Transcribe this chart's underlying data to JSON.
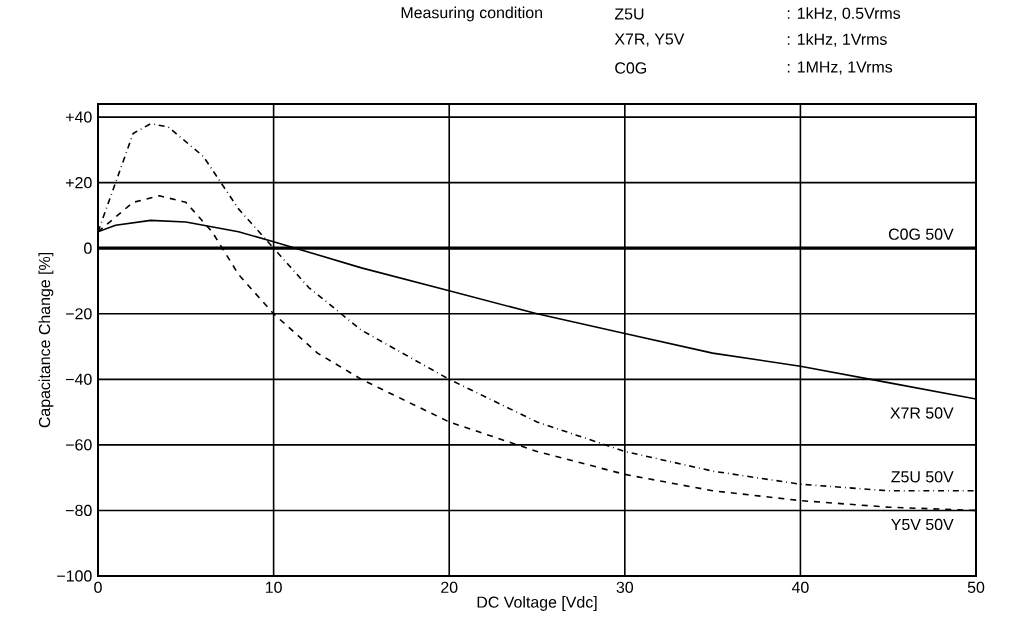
{
  "chart_data": {
    "type": "line",
    "xlabel": "DC Voltage [Vdc]",
    "ylabel": "Capacitance Change [%]",
    "xlim": [
      0,
      50
    ],
    "xticks": [
      0,
      10,
      20,
      30,
      40,
      50
    ],
    "ylim": [
      -100,
      44
    ],
    "yticks": [
      {
        "value": 40,
        "label": "+40"
      },
      {
        "value": 20,
        "label": "+20"
      },
      0,
      {
        "value": -20,
        "label": "−20"
      },
      {
        "value": -40,
        "label": "−40"
      },
      {
        "value": -60,
        "label": "−60"
      },
      {
        "value": -80,
        "label": "−80"
      },
      {
        "value": -100,
        "label": "−100"
      }
    ],
    "grid": true,
    "series": [
      {
        "name": "C0G 50V",
        "color": "#000000",
        "line_style": "solid",
        "x": [
          0,
          50
        ],
        "values": [
          0,
          0
        ]
      },
      {
        "name": "X7R 50V",
        "color": "#000000",
        "line_style": "solid",
        "x": [
          0,
          1,
          3,
          5,
          8,
          10,
          15,
          20,
          25,
          30,
          35,
          40,
          45,
          50
        ],
        "values": [
          5,
          7,
          8.5,
          8,
          5,
          2,
          -6,
          -13,
          -20,
          -26,
          -32,
          -36,
          -41,
          -46
        ]
      },
      {
        "name": "Z5U 50V",
        "color": "#000000",
        "line_style": "dashdot",
        "x": [
          0,
          1,
          2,
          3,
          4,
          6,
          8,
          10,
          12,
          15,
          20,
          25,
          30,
          35,
          40,
          45,
          50
        ],
        "values": [
          5,
          20,
          35,
          38,
          37,
          28,
          12,
          0,
          -12,
          -25,
          -40,
          -53,
          -62,
          -68,
          -72,
          -74,
          -74
        ]
      },
      {
        "name": "Y5V 50V",
        "color": "#000000",
        "line_style": "dashed",
        "x": [
          0,
          2,
          3.5,
          5,
          6.5,
          8,
          10,
          12.5,
          15,
          20,
          25,
          30,
          35,
          40,
          45,
          50
        ],
        "values": [
          5,
          14,
          16,
          14,
          5,
          -8,
          -20,
          -32,
          -40,
          -53,
          -62,
          -69,
          -74,
          -77,
          -79,
          -80
        ]
      }
    ],
    "annotations": [
      "Measuring condition",
      "Z5U",
      ": 1kHz, 0.5Vrms",
      "X7R, Y5V",
      ": 1kHz, 1Vrms",
      "C0G",
      ": 1MHz, 1Vrms"
    ]
  }
}
